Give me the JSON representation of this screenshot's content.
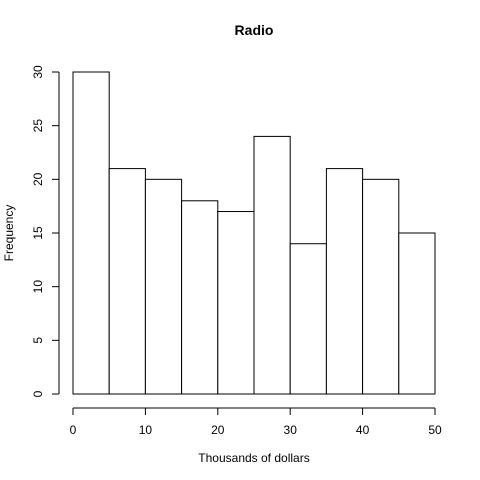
{
  "chart_data": {
    "type": "bar",
    "title": "Radio",
    "xlabel": "Thousands of dollars",
    "ylabel": "Frequency",
    "bin_edges": [
      0,
      5,
      10,
      15,
      20,
      25,
      30,
      35,
      40,
      45,
      50
    ],
    "values": [
      30,
      21,
      20,
      18,
      17,
      24,
      14,
      21,
      20,
      15
    ],
    "xlim": [
      0,
      50
    ],
    "ylim": [
      0,
      30
    ],
    "x_ticks": [
      0,
      10,
      20,
      30,
      40,
      50
    ],
    "y_ticks": [
      0,
      5,
      10,
      15,
      20,
      25,
      30
    ],
    "grid": false
  }
}
